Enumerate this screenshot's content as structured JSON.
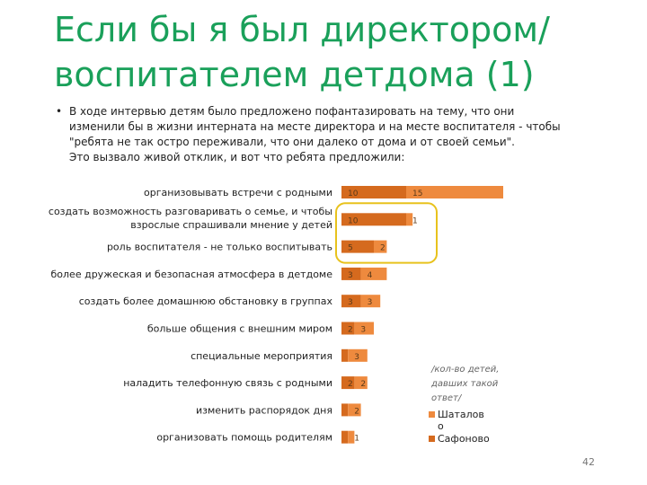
{
  "title": "Если бы я был директором/ воспитателем детдома (1)",
  "bullet": {
    "marker": "•",
    "lines": [
      "В ходе интервью детям было предложено пофантазировать на тему, что они",
      "изменили бы в жизни интерната на месте директора и на месте воспитателя - чтобы",
      "\"ребята не так остро переживали, что они далеко от дома и от своей семьи\".",
      "Это вызвало живой отклик, и вот что ребята предложили:"
    ]
  },
  "note": "/кол-во детей, давших такой ответ/",
  "page_number": "42",
  "colors": {
    "series_dark": "#d56a1e",
    "series_light": "#ee8a3e",
    "highlight": "#e8c21d",
    "title": "#1aa05a"
  },
  "chart_data": {
    "type": "bar",
    "orientation": "horizontal",
    "stacked": true,
    "categories": [
      [
        "организовывать встречи с родными"
      ],
      [
        "создать возможность разговаривать о семье, и чтобы",
        "взрослые спрашивали мнение у детей"
      ],
      [
        "роль воспитателя - не только воспитывать"
      ],
      [
        "более дружеская и безопасная атмосфера в детдоме"
      ],
      [
        "создать более домашнюю обстановку в группах"
      ],
      [
        "больше общения с внешним миром"
      ],
      [
        "специальные мероприятия"
      ],
      [
        "наладить телефонную связь с родными"
      ],
      [
        "изменить распорядок дня"
      ],
      [
        "организовать помощь родителям"
      ]
    ],
    "series": [
      {
        "name": "Сафоново",
        "values": [
          10,
          10,
          5,
          3,
          3,
          2,
          1,
          2,
          1,
          1
        ]
      },
      {
        "name": "Шаталово",
        "values": [
          15,
          1,
          2,
          4,
          3,
          3,
          3,
          2,
          2,
          1
        ]
      }
    ],
    "legend": {
      "position": "bottom-right",
      "items": [
        {
          "label_lines": [
            "Шаталов",
            "о"
          ],
          "series": 1
        },
        {
          "label_lines": [
            "Сафоново"
          ],
          "series": 0
        }
      ]
    }
  }
}
